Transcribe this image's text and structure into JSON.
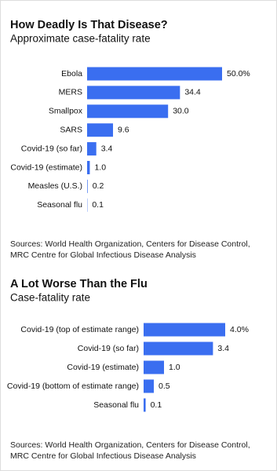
{
  "chart_data": [
    {
      "type": "bar",
      "orientation": "horizontal",
      "title": "How Deadly Is That Disease?",
      "subtitle": "Approximate case-fatality rate",
      "categories": [
        "Ebola",
        "MERS",
        "Smallpox",
        "SARS",
        "Covid-19 (so far)",
        "Covid-19 (estimate)",
        "Measles (U.S.)",
        "Seasonal flu"
      ],
      "values": [
        50.0,
        34.4,
        30.0,
        9.6,
        3.4,
        1.0,
        0.2,
        0.1
      ],
      "value_labels": [
        "50.0%",
        "34.4",
        "30.0",
        "9.6",
        "3.4",
        "1.0",
        "0.2",
        "0.1"
      ],
      "color": "#3a6ef0",
      "source": [
        "Sources: World Health Organization, Centers for Disease Control,",
        "MRC Centre for Global Infectious Disease Analysis"
      ]
    },
    {
      "type": "bar",
      "orientation": "horizontal",
      "title": "A Lot Worse Than the Flu",
      "subtitle": "Case-fatality rate",
      "categories": [
        "Covid-19 (top of estimate range)",
        "Covid-19 (so far)",
        "Covid-19 (estimate)",
        "Covid-19 (bottom of estimate range)",
        "Seasonal flu"
      ],
      "values": [
        4.0,
        3.4,
        1.0,
        0.5,
        0.1
      ],
      "value_labels": [
        "4.0%",
        "3.4",
        "1.0",
        "0.5",
        "0.1"
      ],
      "color": "#3a6ef0",
      "source": [
        "Sources: World Health Organization, Centers for Disease Control,",
        "MRC Centre for Global Infectious Disease Analysis"
      ]
    }
  ]
}
